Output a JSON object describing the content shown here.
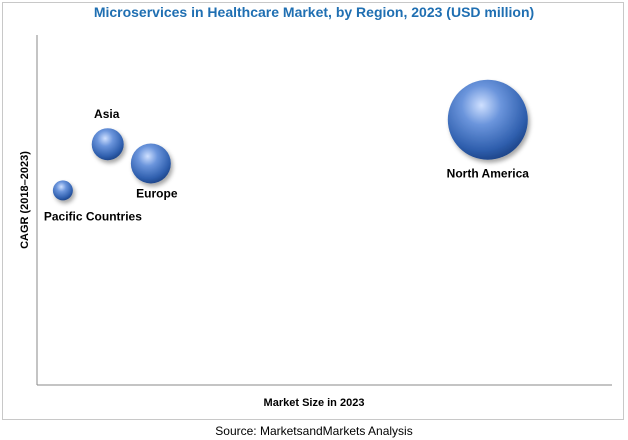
{
  "chart_data": {
    "type": "scatter",
    "title": "Microservices in Healthcare Market, by Region, 2023 (USD million)",
    "xlabel": "Market Size in 2023",
    "ylabel": "CAGR (2018–2023)",
    "grid": false,
    "legend": "none",
    "xlim": [
      0,
      100
    ],
    "ylim": [
      0,
      100
    ],
    "bubble_color": "#3a6fc4",
    "points": [
      {
        "name": "North America",
        "x": 78.4,
        "y": 75.8,
        "size": 40
      },
      {
        "name": "Asia",
        "x": 12.3,
        "y": 68.8,
        "size": 16
      },
      {
        "name": "Europe",
        "x": 19.8,
        "y": 63.3,
        "size": 20
      },
      {
        "name": "Pacific Countries",
        "x": 4.5,
        "y": 55.6,
        "size": 10
      }
    ]
  },
  "footer": {
    "source": "Source: MarketsandMarkets Analysis"
  }
}
